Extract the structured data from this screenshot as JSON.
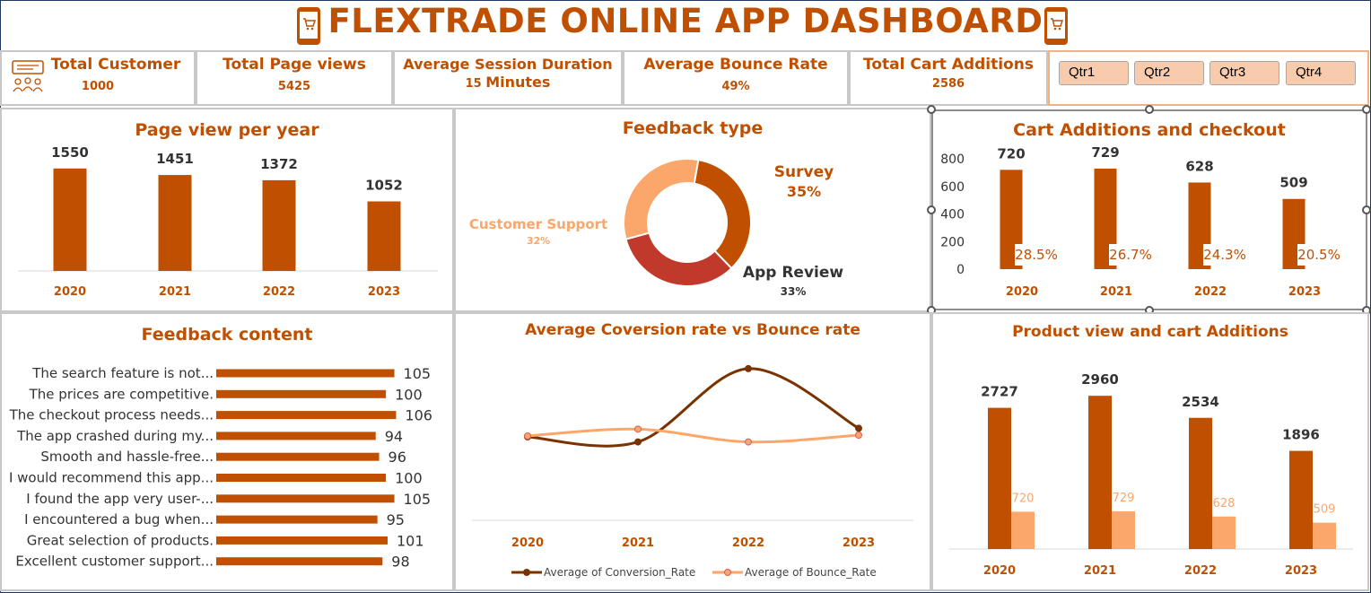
{
  "title": "FLEXTRADE ONLINE APP DASHBOARD",
  "icons": {
    "phone_left": "shopping-phone-icon",
    "phone_right": "shopping-phone-icon",
    "customer": "customers-icon"
  },
  "colors": {
    "accent": "#c05000",
    "light": "#fba66a",
    "dark": "#7a3300",
    "red": "#c0392b"
  },
  "kpis": {
    "total_customer": {
      "label": "Total Customer",
      "value": "1000"
    },
    "page_views": {
      "label": "Total Page views",
      "value": "5425"
    },
    "session": {
      "label": "Average Session Duration",
      "value_num": "15",
      "value_unit": "Minutes"
    },
    "bounce": {
      "label": "Average Bounce Rate",
      "value": "49%"
    },
    "cart": {
      "label": "Total Cart Additions",
      "value": "2586"
    }
  },
  "slicer": {
    "items": [
      "Qtr1",
      "Qtr2",
      "Qtr3",
      "Qtr4"
    ]
  },
  "chart_data": [
    {
      "id": "page_view_per_year",
      "type": "bar",
      "title": "Page view per year",
      "categories": [
        "2020",
        "2021",
        "2022",
        "2023"
      ],
      "values": [
        1550,
        1451,
        1372,
        1052
      ],
      "ylim": [
        0,
        1900
      ]
    },
    {
      "id": "feedback_type",
      "type": "pie",
      "title": "Feedback type",
      "labels": [
        "Survey",
        "App Review",
        "Customer Support"
      ],
      "values": [
        35,
        33,
        32
      ],
      "display": [
        "35%",
        "33%",
        "32%"
      ],
      "colors": [
        "#c05000",
        "#c0392b",
        "#fba66a"
      ]
    },
    {
      "id": "cart_additions_checkout",
      "type": "bar",
      "title": "Cart Additions and checkout",
      "categories": [
        "2020",
        "2021",
        "2022",
        "2023"
      ],
      "values": [
        720,
        729,
        628,
        509
      ],
      "rate_labels": [
        "28.5%",
        "26.7%",
        "24.3%",
        "20.5%"
      ],
      "yticks": [
        "800",
        "600",
        "400",
        "200",
        "0"
      ],
      "ylim": [
        0,
        800
      ]
    },
    {
      "id": "feedback_content",
      "type": "bar",
      "orientation": "horizontal",
      "title": "Feedback content",
      "categories": [
        "The search feature is not...",
        "The prices are competitive.",
        "The checkout process needs...",
        "The app crashed during my...",
        "Smooth and hassle-free...",
        "I would recommend this app...",
        "I found the app very user-...",
        "I encountered a bug when...",
        "Great selection of products.",
        "Excellent customer support..."
      ],
      "values": [
        105,
        100,
        106,
        94,
        96,
        100,
        105,
        95,
        101,
        98
      ],
      "xlim": [
        0,
        110
      ]
    },
    {
      "id": "conversion_vs_bounce",
      "type": "line",
      "title": "Average Coversion rate vs Bounce rate",
      "categories": [
        "2020",
        "2021",
        "2022",
        "2023"
      ],
      "series": [
        {
          "name": "Average of Conversion_Rate",
          "values": [
            4.9,
            4.6,
            8.9,
            5.4
          ],
          "color": "#7a3300"
        },
        {
          "name": "Average of Bounce_Rate",
          "values": [
            4.95,
            5.35,
            4.6,
            5.0
          ],
          "color": "#fba66a"
        }
      ],
      "ylim": [
        0,
        10
      ]
    },
    {
      "id": "product_view_cart",
      "type": "bar",
      "title": "Product view and cart Additions",
      "categories": [
        "2020",
        "2021",
        "2022",
        "2023"
      ],
      "series": [
        {
          "values": [
            2727,
            2960,
            2534,
            1896
          ],
          "color": "#c05000"
        },
        {
          "values": [
            720,
            729,
            628,
            509
          ],
          "color": "#fba66a"
        }
      ],
      "ylim": [
        0,
        3500
      ]
    }
  ]
}
